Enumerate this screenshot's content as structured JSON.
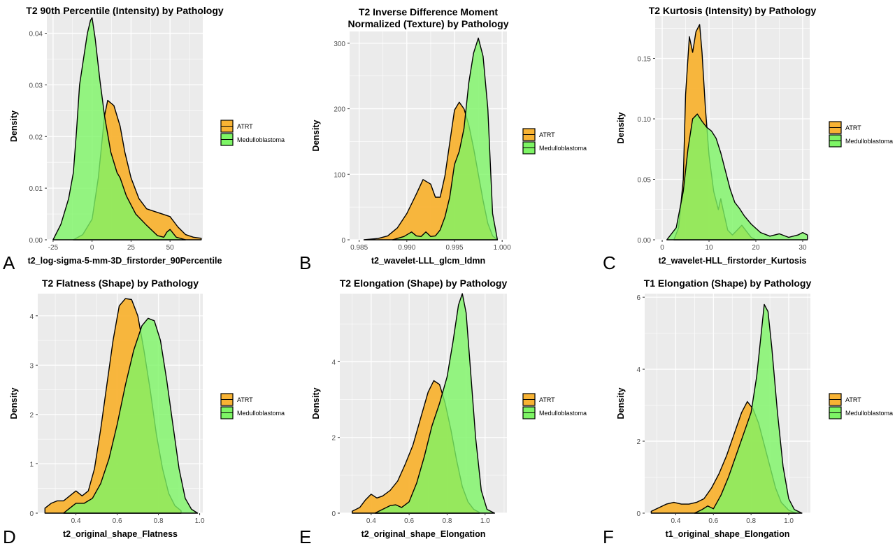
{
  "colors": {
    "ATRT": "#f8b334",
    "Medulloblastoma": "#7df565",
    "panel_bg": "#ebebeb",
    "grid": "#ffffff"
  },
  "legend": [
    "ATRT",
    "Medulloblastoma"
  ],
  "chart_data": [
    {
      "panel": "A",
      "type": "area",
      "title": "T2 90th Percentile (Intensity) by Pathology",
      "xlabel": "t2_log-sigma-5-mm-3D_firstorder_90Percentile",
      "ylabel": "Density",
      "xlim": [
        -29,
        71
      ],
      "ylim": [
        0,
        0.044
      ],
      "xticks": [
        -25,
        0,
        25,
        50
      ],
      "xtick_labels": [
        "-25",
        "0",
        "25",
        "50"
      ],
      "yticks": [
        0,
        0.01,
        0.02,
        0.03,
        0.04
      ],
      "ytick_labels": [
        "0.00",
        "0.01",
        "0.02",
        "0.03",
        "0.04"
      ],
      "series": [
        {
          "name": "ATRT",
          "x": [
            -12,
            -6,
            0,
            4,
            8,
            10,
            14,
            18,
            21,
            25,
            30,
            35,
            40,
            45,
            50,
            55,
            60,
            65,
            70
          ],
          "y": [
            0,
            0.001,
            0.004,
            0.012,
            0.024,
            0.027,
            0.026,
            0.022,
            0.017,
            0.012,
            0.008,
            0.006,
            0.0055,
            0.005,
            0.0045,
            0.0025,
            0.001,
            0.0005,
            0.0003
          ]
        },
        {
          "name": "Medulloblastoma",
          "x": [
            -25,
            -20,
            -15,
            -12,
            -10,
            -8,
            -5,
            -3,
            -1,
            0,
            2,
            5,
            8,
            12,
            16,
            18,
            22,
            28,
            35,
            42,
            46,
            48,
            50,
            54,
            60
          ],
          "y": [
            0,
            0.003,
            0.008,
            0.013,
            0.021,
            0.03,
            0.036,
            0.04,
            0.0425,
            0.043,
            0.039,
            0.031,
            0.024,
            0.017,
            0.013,
            0.012,
            0.0085,
            0.005,
            0.0028,
            0.0008,
            0.0005,
            0.0015,
            0.002,
            0.0005,
            0
          ]
        }
      ]
    },
    {
      "panel": "B",
      "type": "area",
      "title": "T2 Inverse Difference Moment\nNormalized (Texture) by Pathology",
      "xlabel": "t2_wavelet-LLL_glcm_Idmn",
      "ylabel": "Density",
      "xlim": [
        0.984,
        1.0005
      ],
      "ylim": [
        0,
        318
      ],
      "xticks": [
        0.985,
        0.99,
        0.995,
        1.0
      ],
      "xtick_labels": [
        "0.985",
        "0.990",
        "0.995",
        "1.000"
      ],
      "yticks": [
        0,
        100,
        200,
        300
      ],
      "ytick_labels": [
        "0",
        "100",
        "200",
        "300"
      ],
      "series": [
        {
          "name": "ATRT",
          "x": [
            0.9855,
            0.987,
            0.988,
            0.989,
            0.99,
            0.991,
            0.9917,
            0.9925,
            0.993,
            0.9935,
            0.994,
            0.9945,
            0.995,
            0.9955,
            0.996,
            0.9965,
            0.997,
            0.9975,
            0.998,
            0.9985,
            0.999,
            0.9995
          ],
          "y": [
            0,
            2,
            6,
            18,
            40,
            70,
            92,
            85,
            65,
            65,
            98,
            148,
            198,
            210,
            200,
            175,
            140,
            100,
            60,
            25,
            6,
            0
          ]
        },
        {
          "name": "Medulloblastoma",
          "x": [
            0.9885,
            0.989,
            0.9897,
            0.9905,
            0.991,
            0.9915,
            0.992,
            0.9925,
            0.993,
            0.9935,
            0.994,
            0.9945,
            0.995,
            0.9955,
            0.996,
            0.9965,
            0.997,
            0.9975,
            0.998,
            0.9985,
            0.999,
            0.9995
          ],
          "y": [
            0,
            2,
            5,
            12,
            6,
            5,
            12,
            5,
            6,
            15,
            35,
            65,
            115,
            135,
            170,
            240,
            285,
            308,
            280,
            200,
            40,
            0
          ]
        }
      ]
    },
    {
      "panel": "C",
      "type": "area",
      "title": "T2 Kurtosis (Intensity) by Pathology",
      "xlabel": "t2_wavelet-HLL_firstorder_Kurtosis",
      "ylabel": "Density",
      "xlim": [
        -1.5,
        31.5
      ],
      "ylim": [
        0,
        0.185
      ],
      "xticks": [
        0,
        10,
        20,
        30
      ],
      "xtick_labels": [
        "0",
        "10",
        "20",
        "30"
      ],
      "yticks": [
        0,
        0.05,
        0.1,
        0.15
      ],
      "ytick_labels": [
        "0.00",
        "0.05",
        "0.10",
        "0.15"
      ],
      "series": [
        {
          "name": "ATRT",
          "x": [
            2.5,
            3.5,
            4.5,
            5,
            5.8,
            6.5,
            7.2,
            8,
            8.5,
            9.2,
            10,
            11,
            12,
            12.5,
            13,
            14,
            15,
            16,
            17,
            18,
            19,
            20
          ],
          "y": [
            0,
            0.01,
            0.05,
            0.12,
            0.168,
            0.155,
            0.172,
            0.178,
            0.155,
            0.11,
            0.07,
            0.04,
            0.025,
            0.034,
            0.025,
            0.008,
            0.004,
            0.008,
            0.012,
            0.007,
            0.002,
            0
          ]
        },
        {
          "name": "Medulloblastoma",
          "x": [
            1,
            3,
            4.5,
            5.5,
            6.5,
            7.5,
            8.5,
            9.5,
            10.5,
            11.5,
            12.5,
            13.5,
            14.5,
            15.5,
            16.5,
            17.5,
            19,
            21,
            23,
            25,
            27,
            29,
            30,
            31
          ],
          "y": [
            0,
            0.01,
            0.04,
            0.075,
            0.1,
            0.104,
            0.098,
            0.093,
            0.09,
            0.084,
            0.072,
            0.057,
            0.042,
            0.031,
            0.026,
            0.02,
            0.013,
            0.006,
            0.003,
            0.005,
            0.002,
            0.004,
            0.006,
            0.004
          ]
        }
      ]
    },
    {
      "panel": "D",
      "type": "area",
      "title": "T2 Flatness (Shape) by Pathology",
      "xlabel": "t2_original_shape_Flatness",
      "ylabel": "Density",
      "xlim": [
        0.215,
        1.015
      ],
      "ylim": [
        0,
        4.45
      ],
      "xticks": [
        0.4,
        0.6,
        0.8,
        1.0
      ],
      "xtick_labels": [
        "0.4",
        "0.6",
        "0.8",
        "1.0"
      ],
      "yticks": [
        0,
        1,
        2,
        3,
        4
      ],
      "ytick_labels": [
        "0",
        "1",
        "2",
        "3",
        "4"
      ],
      "series": [
        {
          "name": "ATRT",
          "x": [
            0.25,
            0.28,
            0.31,
            0.34,
            0.37,
            0.4,
            0.43,
            0.46,
            0.49,
            0.52,
            0.55,
            0.58,
            0.61,
            0.64,
            0.67,
            0.7,
            0.73,
            0.76,
            0.79,
            0.82,
            0.85,
            0.88,
            0.91
          ],
          "y": [
            0.1,
            0.2,
            0.25,
            0.25,
            0.35,
            0.45,
            0.35,
            0.45,
            0.9,
            1.7,
            2.6,
            3.5,
            4.2,
            4.35,
            4.33,
            4.0,
            3.3,
            2.5,
            1.6,
            0.9,
            0.4,
            0.15,
            0.05
          ]
        },
        {
          "name": "Medulloblastoma",
          "x": [
            0.34,
            0.37,
            0.4,
            0.44,
            0.48,
            0.52,
            0.56,
            0.6,
            0.64,
            0.68,
            0.72,
            0.75,
            0.78,
            0.81,
            0.84,
            0.87,
            0.9,
            0.93,
            0.96,
            0.99
          ],
          "y": [
            0,
            0.1,
            0.2,
            0.2,
            0.3,
            0.6,
            1.1,
            1.8,
            2.6,
            3.3,
            3.8,
            3.95,
            3.9,
            3.5,
            2.7,
            1.8,
            0.9,
            0.3,
            0.08,
            0
          ]
        }
      ]
    },
    {
      "panel": "E",
      "type": "area",
      "title": "T2 Elongation (Shape) by Pathology",
      "xlabel": "t2_original_shape_Elongation",
      "ylabel": "Density",
      "xlim": [
        0.235,
        1.115
      ],
      "ylim": [
        0,
        5.8
      ],
      "xticks": [
        0.4,
        0.6,
        0.8,
        1.0
      ],
      "xtick_labels": [
        "0.4",
        "0.6",
        "0.8",
        "1.0"
      ],
      "yticks": [
        0,
        2,
        4
      ],
      "ytick_labels": [
        "0",
        "2",
        "4"
      ],
      "series": [
        {
          "name": "ATRT",
          "x": [
            0.3,
            0.34,
            0.37,
            0.4,
            0.43,
            0.46,
            0.5,
            0.54,
            0.58,
            0.62,
            0.66,
            0.7,
            0.73,
            0.76,
            0.79,
            0.82,
            0.85,
            0.88,
            0.91,
            0.94,
            0.97
          ],
          "y": [
            0.05,
            0.15,
            0.35,
            0.5,
            0.4,
            0.45,
            0.6,
            0.85,
            1.3,
            1.8,
            2.5,
            3.2,
            3.5,
            3.4,
            2.9,
            2.2,
            1.4,
            0.7,
            0.3,
            0.1,
            0.02
          ]
        },
        {
          "name": "Medulloblastoma",
          "x": [
            0.42,
            0.46,
            0.5,
            0.53,
            0.56,
            0.6,
            0.64,
            0.68,
            0.72,
            0.76,
            0.8,
            0.83,
            0.86,
            0.88,
            0.9,
            0.92,
            0.95,
            0.98,
            1.01,
            1.05
          ],
          "y": [
            0,
            0.1,
            0.2,
            0.22,
            0.15,
            0.3,
            0.8,
            1.5,
            2.3,
            2.9,
            3.6,
            4.5,
            5.5,
            5.8,
            5.3,
            4.0,
            2.0,
            0.6,
            0.1,
            0
          ]
        }
      ]
    },
    {
      "panel": "F",
      "type": "area",
      "title": "T1 Elongation (Shape) by Pathology",
      "xlabel": "t1_original_shape_Elongation",
      "ylabel": "Density",
      "xlim": [
        0.235,
        1.115
      ],
      "ylim": [
        0,
        6.1
      ],
      "xticks": [
        0.4,
        0.6,
        0.8,
        1.0
      ],
      "xtick_labels": [
        "0.4",
        "0.6",
        "0.8",
        "1.0"
      ],
      "yticks": [
        0,
        2,
        4,
        6
      ],
      "ytick_labels": [
        "0",
        "2",
        "4",
        "6"
      ],
      "series": [
        {
          "name": "ATRT",
          "x": [
            0.27,
            0.31,
            0.35,
            0.39,
            0.43,
            0.47,
            0.51,
            0.55,
            0.59,
            0.63,
            0.67,
            0.71,
            0.75,
            0.78,
            0.81,
            0.84,
            0.87,
            0.9,
            0.93,
            0.96,
            1.0,
            1.04
          ],
          "y": [
            0.05,
            0.15,
            0.25,
            0.3,
            0.25,
            0.25,
            0.3,
            0.4,
            0.7,
            1.1,
            1.6,
            2.2,
            2.8,
            3.1,
            2.9,
            2.5,
            1.9,
            1.3,
            0.7,
            0.3,
            0.08,
            0
          ]
        },
        {
          "name": "Medulloblastoma",
          "x": [
            0.5,
            0.54,
            0.57,
            0.6,
            0.64,
            0.68,
            0.72,
            0.76,
            0.8,
            0.83,
            0.85,
            0.87,
            0.89,
            0.91,
            0.94,
            0.97,
            1.0,
            1.03,
            1.07
          ],
          "y": [
            0,
            0.1,
            0.2,
            0.12,
            0.5,
            1.0,
            1.6,
            2.2,
            2.8,
            3.8,
            4.8,
            5.8,
            5.6,
            4.6,
            2.8,
            1.3,
            0.4,
            0.1,
            0
          ]
        }
      ]
    }
  ]
}
